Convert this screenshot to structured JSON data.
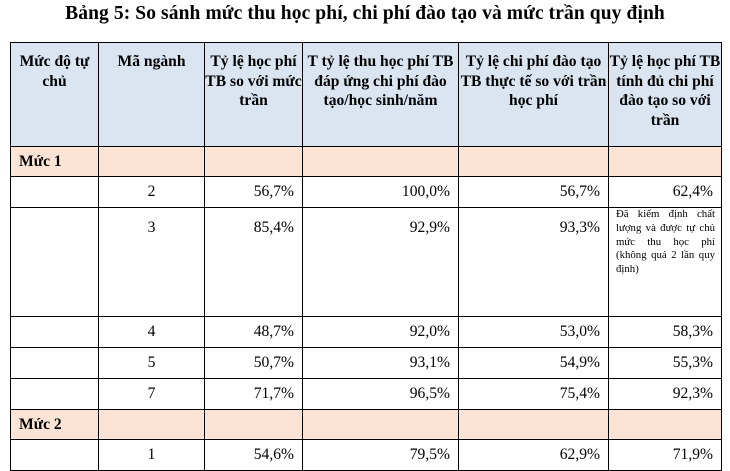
{
  "title": "Bảng 5: So sánh mức thu học phí, chi phí đào tạo và mức trần quy định",
  "table": {
    "headers": [
      "Mức độ tự chủ",
      "Mã ngành",
      "Tỷ lệ học phí TB so với mức trần",
      "T tỷ lệ thu học phí TB đáp ứng chi phí đào tạo/học sinh/năm",
      "Tỷ lệ chi phí đào tạo TB thực tế so với trần học phí",
      "Tỷ lệ học phí TB tính đủ chi phí đào tạo so với trần"
    ],
    "groups": [
      {
        "label": "Mức 1",
        "rows": [
          {
            "code": "2",
            "c3": "56,7%",
            "c4": "100,0%",
            "c5": "56,7%",
            "c6": "62,4%"
          },
          {
            "code": "3",
            "c3": "85,4%",
            "c4": "92,9%",
            "c5": "93,3%",
            "c6": "Đã kiểm định chất lượng và được tự chủ mức thu học phí (không quá 2 lần quy định)"
          },
          {
            "code": "4",
            "c3": "48,7%",
            "c4": "92,0%",
            "c5": "53,0%",
            "c6": "58,3%"
          },
          {
            "code": "5",
            "c3": "50,7%",
            "c4": "93,1%",
            "c5": "54,9%",
            "c6": "55,3%"
          },
          {
            "code": "7",
            "c3": "71,7%",
            "c4": "96,5%",
            "c5": "75,4%",
            "c6": "92,3%"
          }
        ]
      },
      {
        "label": "Mức 2",
        "rows": [
          {
            "code": "1",
            "c3": "54,6%",
            "c4": "79,5%",
            "c5": "62,9%",
            "c6": "71,9%"
          }
        ]
      }
    ]
  }
}
